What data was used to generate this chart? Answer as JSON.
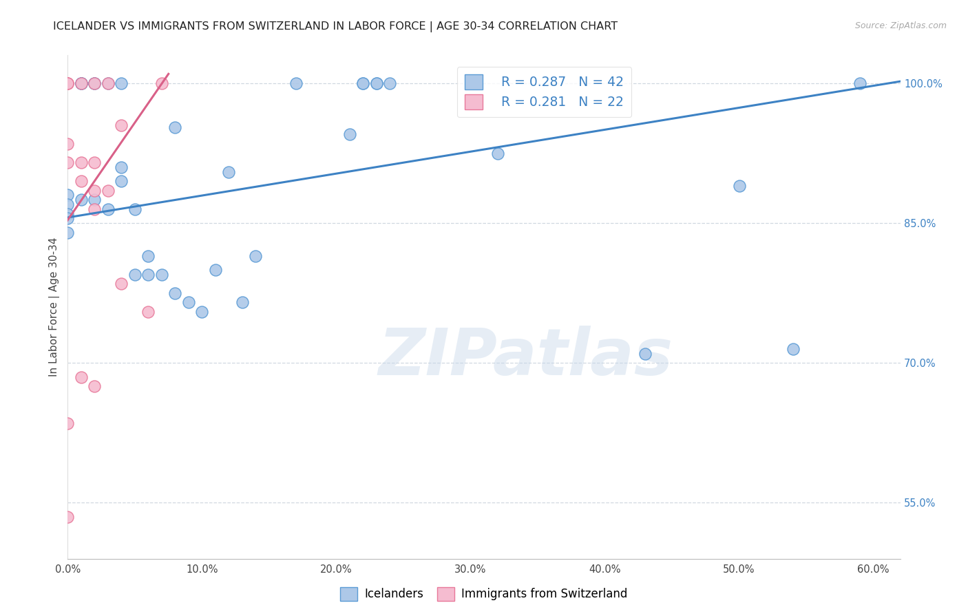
{
  "title": "ICELANDER VS IMMIGRANTS FROM SWITZERLAND IN LABOR FORCE | AGE 30-34 CORRELATION CHART",
  "source": "Source: ZipAtlas.com",
  "xlabel_vals": [
    0.0,
    0.1,
    0.2,
    0.3,
    0.4,
    0.5,
    0.6
  ],
  "ylabel_right_show": [
    "100.0%",
    "85.0%",
    "70.0%",
    "55.0%"
  ],
  "ylabel_right_vals": [
    1.0,
    0.85,
    0.7,
    0.55
  ],
  "xlim": [
    0.0,
    0.62
  ],
  "ylim": [
    0.49,
    1.03
  ],
  "ylabel": "In Labor Force | Age 30-34",
  "icelanders_color": "#adc8e8",
  "immigrants_color": "#f5bcd0",
  "icelanders_edge_color": "#5b9bd5",
  "immigrants_edge_color": "#e8799a",
  "icelanders_line_color": "#3d82c4",
  "immigrants_line_color": "#d96088",
  "legend_R_icelanders": "R = 0.287",
  "legend_N_icelanders": "N = 42",
  "legend_R_immigrants": "R = 0.281",
  "legend_N_immigrants": "N = 22",
  "legend_label_icelanders": "Icelanders",
  "legend_label_immigrants": "Immigrants from Switzerland",
  "watermark": "ZIPatlas",
  "icelanders_x": [
    0.0,
    0.0,
    0.0,
    0.0,
    0.0,
    0.01,
    0.01,
    0.01,
    0.01,
    0.02,
    0.02,
    0.02,
    0.03,
    0.03,
    0.04,
    0.04,
    0.04,
    0.05,
    0.05,
    0.06,
    0.06,
    0.07,
    0.08,
    0.08,
    0.09,
    0.1,
    0.11,
    0.12,
    0.13,
    0.14,
    0.17,
    0.21,
    0.22,
    0.22,
    0.23,
    0.23,
    0.24,
    0.32,
    0.43,
    0.5,
    0.54,
    0.59
  ],
  "icelanders_y": [
    0.88,
    0.87,
    0.86,
    0.855,
    0.84,
    1.0,
    1.0,
    1.0,
    0.875,
    1.0,
    1.0,
    0.875,
    1.0,
    0.865,
    1.0,
    0.91,
    0.895,
    0.865,
    0.795,
    0.815,
    0.795,
    0.795,
    0.953,
    0.775,
    0.765,
    0.755,
    0.8,
    0.905,
    0.765,
    0.815,
    1.0,
    0.945,
    1.0,
    1.0,
    1.0,
    1.0,
    1.0,
    0.925,
    0.71,
    0.89,
    0.715,
    1.0
  ],
  "immigrants_x": [
    0.0,
    0.0,
    0.0,
    0.0,
    0.0,
    0.0,
    0.0,
    0.01,
    0.01,
    0.01,
    0.01,
    0.02,
    0.02,
    0.02,
    0.02,
    0.02,
    0.03,
    0.03,
    0.04,
    0.04,
    0.06,
    0.07
  ],
  "immigrants_y": [
    1.0,
    1.0,
    1.0,
    0.935,
    0.915,
    0.635,
    0.535,
    1.0,
    0.915,
    0.895,
    0.685,
    1.0,
    0.915,
    0.885,
    0.865,
    0.675,
    1.0,
    0.885,
    0.955,
    0.785,
    0.755,
    1.0
  ],
  "icelanders_trendline_x": [
    0.0,
    0.62
  ],
  "icelanders_trendline_y": [
    0.856,
    1.002
  ],
  "immigrants_trendline_x": [
    -0.005,
    0.075
  ],
  "immigrants_trendline_y": [
    0.843,
    1.01
  ],
  "grid_color": "#d0d8e0",
  "title_fontsize": 11.5,
  "source_fontsize": 9,
  "tick_fontsize": 10.5,
  "ylabel_fontsize": 11
}
